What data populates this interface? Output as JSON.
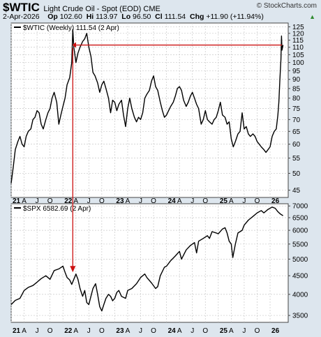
{
  "header": {
    "symbol": "$WTIC",
    "description": "Light Crude Oil - Spot (EOD) CME",
    "watermark": "© StockCharts.com",
    "date": "2-Apr-2026",
    "open_label": "Op",
    "open": "102.60",
    "high_label": "Hi",
    "high": "113.97",
    "low_label": "Lo",
    "low": "96.50",
    "close_label": "Cl",
    "close": "111.54",
    "change_label": "Chg",
    "change": "+11.90 (+11.94%)",
    "up_color": "#2f8a2f"
  },
  "chart_data": [
    {
      "type": "line",
      "legend": "$WTIC (Weekly) 111.54 (2 Apr)",
      "yticks": [
        45,
        50,
        55,
        60,
        65,
        70,
        75,
        80,
        85,
        90,
        95,
        100,
        105,
        110,
        115,
        120,
        125
      ],
      "ylim": [
        43,
        128
      ],
      "log_scale": true,
      "xlim": [
        2021.0,
        2026.35
      ],
      "line_color": "#000000",
      "grid": true,
      "points": [
        [
          2021.0,
          47
        ],
        [
          2021.04,
          52
        ],
        [
          2021.08,
          58
        ],
        [
          2021.13,
          61
        ],
        [
          2021.17,
          63
        ],
        [
          2021.21,
          60
        ],
        [
          2021.25,
          59
        ],
        [
          2021.29,
          63
        ],
        [
          2021.33,
          65
        ],
        [
          2021.38,
          66
        ],
        [
          2021.42,
          70
        ],
        [
          2021.46,
          71
        ],
        [
          2021.5,
          74
        ],
        [
          2021.54,
          73
        ],
        [
          2021.58,
          68
        ],
        [
          2021.62,
          66
        ],
        [
          2021.67,
          70
        ],
        [
          2021.71,
          73
        ],
        [
          2021.75,
          75
        ],
        [
          2021.79,
          80
        ],
        [
          2021.83,
          83
        ],
        [
          2021.88,
          78
        ],
        [
          2021.92,
          68
        ],
        [
          2021.96,
          72
        ],
        [
          2022.0,
          76
        ],
        [
          2022.04,
          80
        ],
        [
          2022.08,
          87
        ],
        [
          2022.13,
          91
        ],
        [
          2022.17,
          100
        ],
        [
          2022.19,
          123
        ],
        [
          2022.21,
          110
        ],
        [
          2022.25,
          100
        ],
        [
          2022.29,
          106
        ],
        [
          2022.33,
          110
        ],
        [
          2022.38,
          114
        ],
        [
          2022.42,
          116
        ],
        [
          2022.46,
          120
        ],
        [
          2022.5,
          110
        ],
        [
          2022.54,
          104
        ],
        [
          2022.58,
          94
        ],
        [
          2022.62,
          92
        ],
        [
          2022.67,
          88
        ],
        [
          2022.71,
          83
        ],
        [
          2022.75,
          87
        ],
        [
          2022.79,
          89
        ],
        [
          2022.83,
          85
        ],
        [
          2022.88,
          80
        ],
        [
          2022.92,
          73
        ],
        [
          2022.96,
          79
        ],
        [
          2023.0,
          78
        ],
        [
          2023.04,
          74
        ],
        [
          2023.08,
          77
        ],
        [
          2023.13,
          79
        ],
        [
          2023.17,
          72
        ],
        [
          2023.21,
          67
        ],
        [
          2023.25,
          75
        ],
        [
          2023.29,
          80
        ],
        [
          2023.33,
          75
        ],
        [
          2023.38,
          71
        ],
        [
          2023.42,
          69
        ],
        [
          2023.46,
          71
        ],
        [
          2023.5,
          70
        ],
        [
          2023.54,
          73
        ],
        [
          2023.58,
          80
        ],
        [
          2023.62,
          82
        ],
        [
          2023.67,
          84
        ],
        [
          2023.71,
          89
        ],
        [
          2023.75,
          92
        ],
        [
          2023.79,
          86
        ],
        [
          2023.83,
          84
        ],
        [
          2023.88,
          78
        ],
        [
          2023.92,
          74
        ],
        [
          2023.96,
          71
        ],
        [
          2024.0,
          72
        ],
        [
          2024.04,
          74
        ],
        [
          2024.08,
          76
        ],
        [
          2024.13,
          78
        ],
        [
          2024.17,
          81
        ],
        [
          2024.21,
          85
        ],
        [
          2024.25,
          86
        ],
        [
          2024.29,
          84
        ],
        [
          2024.33,
          79
        ],
        [
          2024.38,
          76
        ],
        [
          2024.42,
          78
        ],
        [
          2024.46,
          81
        ],
        [
          2024.5,
          83
        ],
        [
          2024.54,
          80
        ],
        [
          2024.58,
          77
        ],
        [
          2024.62,
          75
        ],
        [
          2024.67,
          68
        ],
        [
          2024.71,
          70
        ],
        [
          2024.75,
          74
        ],
        [
          2024.79,
          70
        ],
        [
          2024.83,
          69
        ],
        [
          2024.88,
          68
        ],
        [
          2024.92,
          70
        ],
        [
          2024.96,
          71
        ],
        [
          2025.0,
          74
        ],
        [
          2025.04,
          78
        ],
        [
          2025.08,
          72
        ],
        [
          2025.13,
          71
        ],
        [
          2025.17,
          68
        ],
        [
          2025.21,
          69
        ],
        [
          2025.25,
          62
        ],
        [
          2025.29,
          59
        ],
        [
          2025.33,
          61
        ],
        [
          2025.38,
          64
        ],
        [
          2025.42,
          65
        ],
        [
          2025.46,
          73
        ],
        [
          2025.5,
          66
        ],
        [
          2025.54,
          67
        ],
        [
          2025.58,
          64
        ],
        [
          2025.62,
          63
        ],
        [
          2025.67,
          64
        ],
        [
          2025.71,
          63
        ],
        [
          2025.75,
          61
        ],
        [
          2025.79,
          60
        ],
        [
          2025.83,
          59
        ],
        [
          2025.88,
          58
        ],
        [
          2025.92,
          57
        ],
        [
          2025.96,
          58
        ],
        [
          2026.0,
          59
        ],
        [
          2026.04,
          63
        ],
        [
          2026.08,
          65
        ],
        [
          2026.12,
          66
        ],
        [
          2026.15,
          72
        ],
        [
          2026.17,
          78
        ],
        [
          2026.19,
          90
        ],
        [
          2026.21,
          102
        ],
        [
          2026.22,
          118
        ],
        [
          2026.23,
          108
        ],
        [
          2026.25,
          111.54
        ]
      ]
    },
    {
      "type": "line",
      "legend": "$SPX 6582.69 (2 Apr)",
      "yticks": [
        3500,
        4000,
        4500,
        5000,
        5500,
        6000,
        6500,
        7000
      ],
      "ylim": [
        3350,
        7100
      ],
      "log_scale": true,
      "xlim": [
        2021.0,
        2026.35
      ],
      "line_color": "#000000",
      "grid": true,
      "xticks": [
        {
          "label": "21",
          "x": 2021.0,
          "bold": true
        },
        {
          "label": "A",
          "x": 2021.25
        },
        {
          "label": "J",
          "x": 2021.5
        },
        {
          "label": "O",
          "x": 2021.75
        },
        {
          "label": "22",
          "x": 2022.0,
          "bold": true
        },
        {
          "label": "A",
          "x": 2022.25
        },
        {
          "label": "J",
          "x": 2022.5
        },
        {
          "label": "O",
          "x": 2022.75
        },
        {
          "label": "23",
          "x": 2023.0,
          "bold": true
        },
        {
          "label": "A",
          "x": 2023.25
        },
        {
          "label": "J",
          "x": 2023.5
        },
        {
          "label": "O",
          "x": 2023.75
        },
        {
          "label": "24",
          "x": 2024.0,
          "bold": true
        },
        {
          "label": "A",
          "x": 2024.25
        },
        {
          "label": "J",
          "x": 2024.5
        },
        {
          "label": "O",
          "x": 2024.75
        },
        {
          "label": "25",
          "x": 2025.0,
          "bold": true
        },
        {
          "label": "A",
          "x": 2025.25
        },
        {
          "label": "J",
          "x": 2025.5
        },
        {
          "label": "O",
          "x": 2025.75
        },
        {
          "label": "26",
          "x": 2026.0,
          "bold": true
        }
      ],
      "points": [
        [
          2021.0,
          3750
        ],
        [
          2021.08,
          3850
        ],
        [
          2021.17,
          3900
        ],
        [
          2021.25,
          4100
        ],
        [
          2021.33,
          4180
        ],
        [
          2021.42,
          4230
        ],
        [
          2021.5,
          4320
        ],
        [
          2021.58,
          4420
        ],
        [
          2021.67,
          4500
        ],
        [
          2021.75,
          4400
        ],
        [
          2021.83,
          4650
        ],
        [
          2021.92,
          4700
        ],
        [
          2022.0,
          4780
        ],
        [
          2022.04,
          4600
        ],
        [
          2022.08,
          4450
        ],
        [
          2022.13,
          4380
        ],
        [
          2022.17,
          4260
        ],
        [
          2022.21,
          4400
        ],
        [
          2022.25,
          4550
        ],
        [
          2022.29,
          4400
        ],
        [
          2022.33,
          4150
        ],
        [
          2022.38,
          3950
        ],
        [
          2022.42,
          4100
        ],
        [
          2022.46,
          3800
        ],
        [
          2022.5,
          3750
        ],
        [
          2022.54,
          3950
        ],
        [
          2022.58,
          4150
        ],
        [
          2022.63,
          4280
        ],
        [
          2022.67,
          4000
        ],
        [
          2022.71,
          3700
        ],
        [
          2022.75,
          3600
        ],
        [
          2022.79,
          3750
        ],
        [
          2022.83,
          3900
        ],
        [
          2022.88,
          4000
        ],
        [
          2022.92,
          3950
        ],
        [
          2022.96,
          3840
        ],
        [
          2023.0,
          3900
        ],
        [
          2023.04,
          4050
        ],
        [
          2023.08,
          4100
        ],
        [
          2023.13,
          3950
        ],
        [
          2023.21,
          3900
        ],
        [
          2023.25,
          4100
        ],
        [
          2023.33,
          4150
        ],
        [
          2023.42,
          4280
        ],
        [
          2023.5,
          4450
        ],
        [
          2023.58,
          4550
        ],
        [
          2023.62,
          4450
        ],
        [
          2023.71,
          4300
        ],
        [
          2023.79,
          4150
        ],
        [
          2023.83,
          4200
        ],
        [
          2023.88,
          4500
        ],
        [
          2023.96,
          4750
        ],
        [
          2024.0,
          4780
        ],
        [
          2024.08,
          4950
        ],
        [
          2024.17,
          5100
        ],
        [
          2024.25,
          5250
        ],
        [
          2024.29,
          5000
        ],
        [
          2024.38,
          5300
        ],
        [
          2024.46,
          5450
        ],
        [
          2024.54,
          5550
        ],
        [
          2024.58,
          5200
        ],
        [
          2024.62,
          5600
        ],
        [
          2024.71,
          5700
        ],
        [
          2024.79,
          5800
        ],
        [
          2024.83,
          5700
        ],
        [
          2024.88,
          5950
        ],
        [
          2024.96,
          5900
        ],
        [
          2025.0,
          5870
        ],
        [
          2025.08,
          6050
        ],
        [
          2025.13,
          6100
        ],
        [
          2025.17,
          5900
        ],
        [
          2025.21,
          5600
        ],
        [
          2025.25,
          5500
        ],
        [
          2025.28,
          5050
        ],
        [
          2025.33,
          5500
        ],
        [
          2025.38,
          5900
        ],
        [
          2025.46,
          6000
        ],
        [
          2025.5,
          6200
        ],
        [
          2025.58,
          6400
        ],
        [
          2025.67,
          6550
        ],
        [
          2025.75,
          6700
        ],
        [
          2025.83,
          6800
        ],
        [
          2025.88,
          6700
        ],
        [
          2025.96,
          6850
        ],
        [
          2026.04,
          6950
        ],
        [
          2026.1,
          6900
        ],
        [
          2026.15,
          6750
        ],
        [
          2026.2,
          6650
        ],
        [
          2026.25,
          6582.69
        ]
      ]
    }
  ],
  "annotations": {
    "color": "#cc1111"
  }
}
